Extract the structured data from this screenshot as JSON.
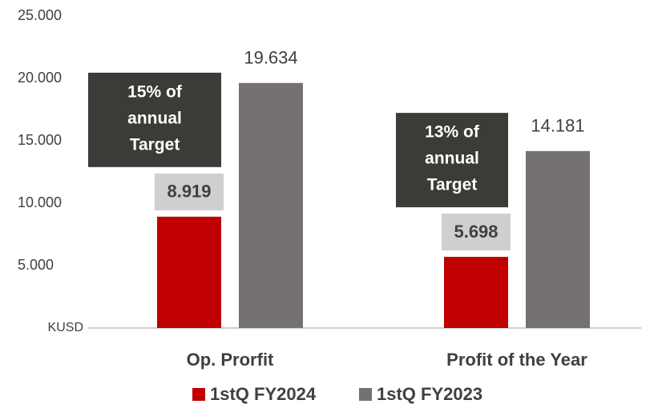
{
  "chart_data": {
    "type": "bar",
    "categories": [
      "Op. Prorfit",
      "Profit of the Year"
    ],
    "series": [
      {
        "name": "1stQ FY2024",
        "color": "#c00000",
        "values": [
          8919,
          5698
        ],
        "value_labels": [
          "8.919",
          "5.698"
        ]
      },
      {
        "name": "1stQ FY2023",
        "color": "#767171",
        "values": [
          19634,
          14181
        ],
        "value_labels": [
          "19.634",
          "14.181"
        ]
      }
    ],
    "ylim": [
      0,
      25000
    ],
    "yticks": [
      {
        "value": 0,
        "label": "KUSD"
      },
      {
        "value": 5000,
        "label": "5.000"
      },
      {
        "value": 10000,
        "label": "10.000"
      },
      {
        "value": 15000,
        "label": "15.000"
      },
      {
        "value": 20000,
        "label": "20.000"
      },
      {
        "value": 25000,
        "label": "25.000"
      }
    ],
    "annotations": [
      {
        "text": [
          "15% of",
          "annual",
          "Target"
        ]
      },
      {
        "text": [
          "13% of",
          "annual",
          "Target"
        ]
      }
    ],
    "legend": "bottom",
    "grid": false
  }
}
